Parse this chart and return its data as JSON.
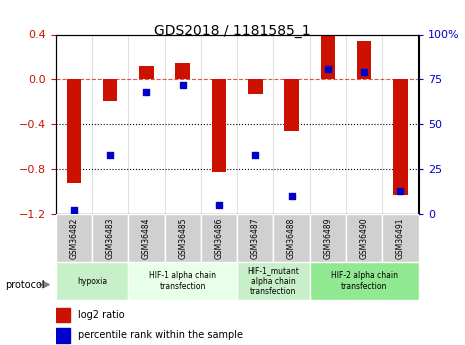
{
  "title": "GDS2018 / 1181585_1",
  "samples": [
    "GSM36482",
    "GSM36483",
    "GSM36484",
    "GSM36485",
    "GSM36486",
    "GSM36487",
    "GSM36488",
    "GSM36489",
    "GSM36490",
    "GSM36491"
  ],
  "log2_ratio": [
    -0.92,
    -0.19,
    0.12,
    0.15,
    -0.83,
    -0.13,
    -0.46,
    0.39,
    0.34,
    -1.03
  ],
  "percentile_rank": [
    2,
    33,
    68,
    72,
    5,
    33,
    10,
    81,
    79,
    13
  ],
  "ylim_left": [
    -1.2,
    0.4
  ],
  "ylim_right": [
    0,
    100
  ],
  "yticks_left": [
    -1.2,
    -0.8,
    -0.4,
    0.0,
    0.4
  ],
  "yticks_right": [
    0,
    25,
    50,
    75,
    100
  ],
  "bar_color": "#cc1100",
  "dot_color": "#0000cc",
  "bg_color": "#ffffff",
  "plot_bg": "#ffffff",
  "hline_y": 0.0,
  "dotted_lines": [
    -0.4,
    -0.8
  ],
  "protocols": [
    {
      "label": "hypoxia",
      "start": 0,
      "end": 2,
      "color": "#c8f0c8"
    },
    {
      "label": "HIF-1 alpha chain\ntransfection",
      "start": 2,
      "end": 5,
      "color": "#e8ffe8"
    },
    {
      "label": "HIF-1_mutant\nalpha chain\ntransfection",
      "start": 5,
      "end": 7,
      "color": "#c8f0c8"
    },
    {
      "label": "HIF-2 alpha chain\ntransfection",
      "start": 7,
      "end": 10,
      "color": "#90e890"
    }
  ],
  "legend_bar_label": "log2 ratio",
  "legend_dot_label": "percentile rank within the sample",
  "xlabel": "",
  "protocol_label": "protocol"
}
